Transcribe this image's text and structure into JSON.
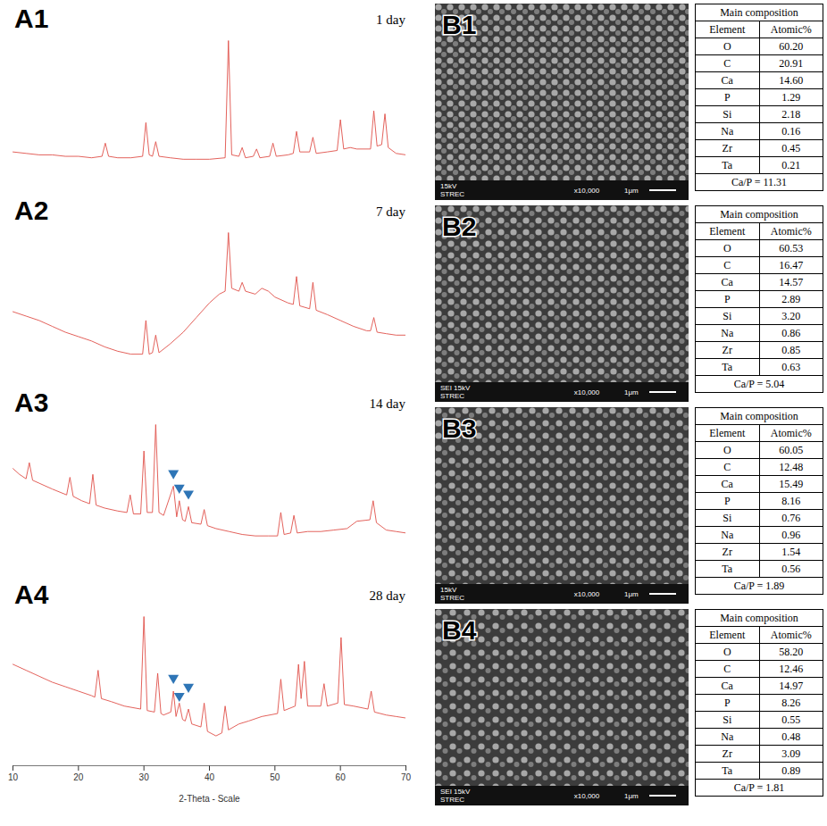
{
  "chart_data": [
    {
      "type": "line",
      "panel": "A1",
      "title": "1 day",
      "color": "#e0504a",
      "xlim": [
        10,
        70
      ],
      "ylim": [
        0,
        100
      ],
      "tick_labels": false,
      "x": [
        10,
        12,
        14,
        16,
        18,
        20,
        22,
        23.6,
        24.1,
        24.6,
        26,
        28,
        29.8,
        30.3,
        30.8,
        31.3,
        31.8,
        32.3,
        34,
        36,
        38,
        40,
        42.4,
        42.9,
        43.4,
        44.5,
        45.0,
        45.5,
        46.7,
        47.2,
        47.7,
        49.2,
        49.7,
        50.2,
        52,
        52.8,
        53.3,
        53.8,
        55.3,
        55.8,
        56.3,
        58,
        59.5,
        60.0,
        60.5,
        61.5,
        62.5,
        64.6,
        65.1,
        65.6,
        66.3,
        66.8,
        67.3,
        68.5,
        70
      ],
      "values": [
        24,
        23,
        22,
        22,
        21,
        21,
        20,
        21,
        30,
        21,
        20,
        20,
        21,
        44,
        22,
        21,
        31,
        21,
        20,
        19,
        19,
        19,
        20,
        100,
        22,
        21,
        27,
        20,
        21,
        26,
        20,
        21,
        30,
        21,
        22,
        23,
        38,
        24,
        24,
        34,
        23,
        24,
        25,
        46,
        26,
        27,
        26,
        26,
        52,
        28,
        29,
        50,
        27,
        23,
        22
      ]
    },
    {
      "type": "line",
      "panel": "A2",
      "title": "7 day",
      "color": "#e0504a",
      "xlim": [
        10,
        70
      ],
      "ylim": [
        0,
        100
      ],
      "tick_labels": false,
      "x": [
        10,
        12,
        14,
        16,
        18,
        20,
        22,
        24,
        26,
        28,
        29.8,
        30.3,
        30.8,
        31.3,
        31.8,
        32.3,
        34,
        36,
        38,
        40,
        41.5,
        42.4,
        42.9,
        43.4,
        44.5,
        45,
        45.5,
        47,
        48,
        49,
        50,
        52,
        52.8,
        53.3,
        53.8,
        55.3,
        55.8,
        56.3,
        58,
        60,
        62,
        64,
        64.6,
        65.1,
        65.6,
        67,
        68.5,
        70
      ],
      "values": [
        46,
        43,
        40,
        36,
        32,
        29,
        26,
        22,
        19,
        17,
        17,
        40,
        17,
        18,
        30,
        18,
        24,
        32,
        42,
        52,
        58,
        60,
        100,
        62,
        60,
        66,
        60,
        58,
        62,
        60,
        56,
        52,
        51,
        70,
        50,
        48,
        66,
        47,
        44,
        40,
        36,
        33,
        33,
        42,
        32,
        31,
        30,
        30
      ]
    },
    {
      "type": "line",
      "panel": "A3",
      "title": "14 day",
      "color": "#e0504a",
      "xlim": [
        10,
        70
      ],
      "ylim": [
        0,
        100
      ],
      "tick_labels": false,
      "x": [
        10,
        11,
        12,
        12.5,
        13,
        14,
        16,
        18.2,
        18.7,
        19.2,
        20.5,
        21.7,
        22.2,
        22.7,
        24,
        26,
        27.4,
        27.9,
        28.4,
        29.5,
        30.0,
        30.5,
        31.3,
        31.8,
        32.3,
        33,
        34.5,
        35,
        35.4,
        35.9,
        36.3,
        36.8,
        37.3,
        38.7,
        39.2,
        39.7,
        41,
        43,
        45,
        47,
        49,
        50.4,
        50.9,
        51.4,
        52.4,
        52.9,
        53.4,
        55,
        57,
        59,
        61,
        62.5,
        64.5,
        65,
        65.5,
        67,
        68.5,
        70
      ],
      "values": [
        70,
        66,
        63,
        74,
        62,
        60,
        56,
        52,
        64,
        51,
        48,
        46,
        66,
        45,
        43,
        41,
        40,
        52,
        39,
        39,
        82,
        40,
        40,
        100,
        40,
        38,
        58,
        37,
        48,
        35,
        34,
        44,
        33,
        32,
        42,
        31,
        29,
        27,
        25,
        24,
        24,
        24,
        40,
        25,
        26,
        38,
        26,
        27,
        27,
        28,
        29,
        34,
        35,
        48,
        33,
        28,
        27,
        26
      ],
      "annotations": [
        {
          "x": 34.5,
          "y": 66,
          "marker": "triangle-down",
          "color": "#2e75b6"
        },
        {
          "x": 35.4,
          "y": 56,
          "marker": "triangle-down",
          "color": "#2e75b6"
        },
        {
          "x": 36.8,
          "y": 52,
          "marker": "triangle-down",
          "color": "#2e75b6"
        }
      ]
    },
    {
      "type": "line",
      "panel": "A4",
      "title": "28 day",
      "color": "#e0504a",
      "xlim": [
        10,
        70
      ],
      "ylim": [
        0,
        100
      ],
      "tick_labels": "x",
      "xticks": [
        10,
        20,
        30,
        40,
        50,
        60,
        70
      ],
      "xlabel": "2-Theta - Scale",
      "x": [
        10,
        12,
        14,
        16,
        18,
        20,
        22,
        22.5,
        23.0,
        23.5,
        25,
        27,
        29.5,
        30.0,
        30.5,
        31.6,
        32.1,
        32.6,
        33,
        34.1,
        34.5,
        34.9,
        35.4,
        35.9,
        36.3,
        36.8,
        37.3,
        38.7,
        39.2,
        39.7,
        41,
        41.9,
        42.4,
        42.9,
        44.5,
        46,
        48,
        50.4,
        50.9,
        51.4,
        53.1,
        53.6,
        54.0,
        54.5,
        55,
        57,
        57.5,
        58,
        59.6,
        60.1,
        60.6,
        62,
        64.2,
        64.7,
        65.2,
        67,
        68.5,
        70
      ],
      "values": [
        68,
        64,
        60,
        56,
        53,
        50,
        47,
        46,
        64,
        45,
        43,
        40,
        38,
        100,
        37,
        36,
        62,
        35,
        34,
        36,
        50,
        33,
        42,
        31,
        30,
        38,
        28,
        26,
        42,
        23,
        20,
        22,
        40,
        24,
        28,
        30,
        33,
        35,
        58,
        37,
        40,
        68,
        45,
        70,
        40,
        40,
        55,
        40,
        42,
        86,
        41,
        40,
        38,
        50,
        36,
        34,
        33,
        32
      ],
      "annotations": [
        {
          "x": 34.5,
          "y": 58,
          "marker": "triangle-down",
          "color": "#2e75b6"
        },
        {
          "x": 35.4,
          "y": 46,
          "marker": "triangle-down",
          "color": "#2e75b6"
        },
        {
          "x": 36.8,
          "y": 52,
          "marker": "triangle-down",
          "color": "#2e75b6"
        }
      ]
    }
  ],
  "sem_images": [
    {
      "panel": "B1",
      "detector": [
        "15kV"
      ],
      "magnification": "x10,000",
      "scale_bar": "1μm",
      "lab": "STREC"
    },
    {
      "panel": "B2",
      "detector": [
        "SEI",
        "15kV"
      ],
      "magnification": "x10,000",
      "scale_bar": "1μm",
      "lab": "STREC"
    },
    {
      "panel": "B3",
      "detector": [
        "15kV"
      ],
      "magnification": "x10,000",
      "scale_bar": "1μm",
      "lab": "STREC"
    },
    {
      "panel": "B4",
      "detector": [
        "SEI",
        "15kV"
      ],
      "magnification": "x10,000",
      "scale_bar": "1μm",
      "lab": "STREC"
    }
  ],
  "tables": [
    {
      "title": "Main composition",
      "columns": [
        "Element",
        "Atomic%"
      ],
      "rows": [
        [
          "O",
          "60.20"
        ],
        [
          "C",
          "20.91"
        ],
        [
          "Ca",
          "14.60"
        ],
        [
          "P",
          "1.29"
        ],
        [
          "Si",
          "2.18"
        ],
        [
          "Na",
          "0.16"
        ],
        [
          "Zr",
          "0.45"
        ],
        [
          "Ta",
          "0.21"
        ]
      ],
      "footer": "Ca/P = 11.31"
    },
    {
      "title": "Main composition",
      "columns": [
        "Element",
        "Atomic%"
      ],
      "rows": [
        [
          "O",
          "60.53"
        ],
        [
          "C",
          "16.47"
        ],
        [
          "Ca",
          "14.57"
        ],
        [
          "P",
          "2.89"
        ],
        [
          "Si",
          "3.20"
        ],
        [
          "Na",
          "0.86"
        ],
        [
          "Zr",
          "0.85"
        ],
        [
          "Ta",
          "0.63"
        ]
      ],
      "footer": "Ca/P = 5.04"
    },
    {
      "title": "Main composition",
      "columns": [
        "Element",
        "Atomic%"
      ],
      "rows": [
        [
          "O",
          "60.05"
        ],
        [
          "C",
          "12.48"
        ],
        [
          "Ca",
          "15.49"
        ],
        [
          "P",
          "8.16"
        ],
        [
          "Si",
          "0.76"
        ],
        [
          "Na",
          "0.96"
        ],
        [
          "Zr",
          "1.54"
        ],
        [
          "Ta",
          "0.56"
        ]
      ],
      "footer": "Ca/P = 1.89"
    },
    {
      "title": "Main composition",
      "columns": [
        "Element",
        "Atomic%"
      ],
      "rows": [
        [
          "O",
          "58.20"
        ],
        [
          "C",
          "12.46"
        ],
        [
          "Ca",
          "14.97"
        ],
        [
          "P",
          "8.26"
        ],
        [
          "Si",
          "0.55"
        ],
        [
          "Na",
          "0.48"
        ],
        [
          "Zr",
          "3.09"
        ],
        [
          "Ta",
          "0.89"
        ]
      ],
      "footer": "Ca/P = 1.81"
    }
  ]
}
